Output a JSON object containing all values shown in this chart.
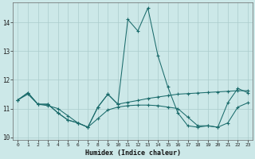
{
  "xlabel": "Humidex (Indice chaleur)",
  "background_color": "#cce8e8",
  "grid_color": "#aacccc",
  "line_color": "#1a6b6b",
  "x_values": [
    0,
    1,
    2,
    3,
    4,
    5,
    6,
    7,
    8,
    9,
    10,
    11,
    12,
    13,
    14,
    15,
    16,
    17,
    18,
    19,
    20,
    21,
    22,
    23
  ],
  "series1": [
    11.3,
    11.55,
    11.15,
    11.15,
    10.85,
    10.6,
    10.5,
    10.35,
    11.05,
    11.5,
    11.15,
    14.1,
    13.7,
    14.5,
    12.85,
    11.75,
    10.85,
    10.4,
    10.35,
    10.4,
    10.35,
    11.2,
    11.7,
    11.55
  ],
  "series2": [
    11.3,
    11.55,
    11.15,
    11.15,
    10.85,
    10.6,
    10.5,
    10.35,
    11.05,
    11.5,
    11.15,
    11.22,
    11.28,
    11.35,
    11.4,
    11.45,
    11.5,
    11.52,
    11.54,
    11.56,
    11.58,
    11.6,
    11.62,
    11.62
  ],
  "series3": [
    11.3,
    11.5,
    11.15,
    11.1,
    11.0,
    10.75,
    10.5,
    10.35,
    10.65,
    10.95,
    11.05,
    11.1,
    11.12,
    11.12,
    11.1,
    11.05,
    11.0,
    10.7,
    10.4,
    10.4,
    10.35,
    10.5,
    11.05,
    11.2
  ],
  "ylim": [
    9.9,
    14.7
  ],
  "xlim": [
    -0.5,
    23.5
  ],
  "yticks": [
    10,
    11,
    12,
    13,
    14
  ],
  "xticks": [
    0,
    1,
    2,
    3,
    4,
    5,
    6,
    7,
    8,
    9,
    10,
    11,
    12,
    13,
    14,
    15,
    16,
    17,
    18,
    19,
    20,
    21,
    22,
    23
  ]
}
